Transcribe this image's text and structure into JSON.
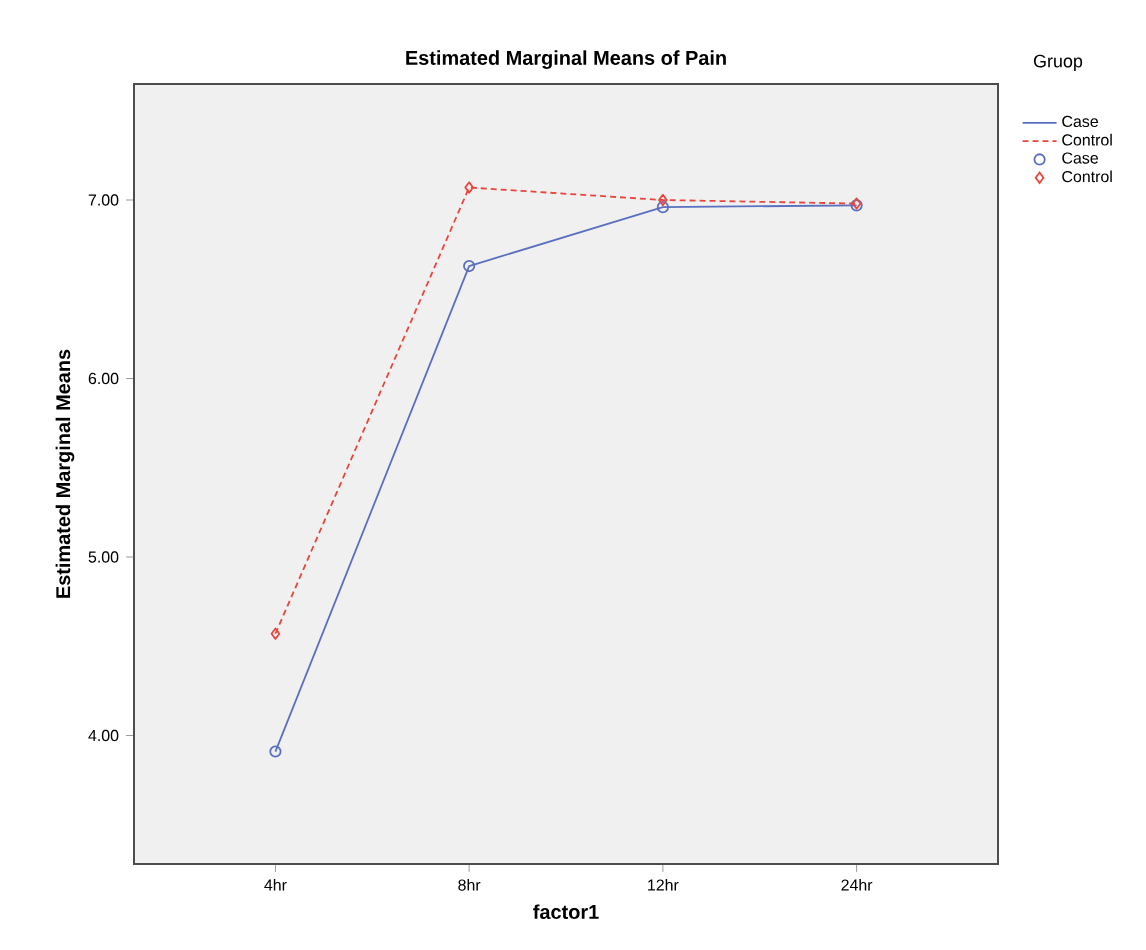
{
  "chart_data": {
    "type": "line",
    "title": "Estimated Marginal Means of Pain",
    "xlabel": "factor1",
    "ylabel": "Estimated Marginal Means",
    "legend_title": "Gruop",
    "categories": [
      "4hr",
      "8hr",
      "12hr",
      "24hr"
    ],
    "series": [
      {
        "name": "Case",
        "color": "#5a6fbf",
        "values": [
          3.91,
          6.63,
          6.96,
          6.97
        ],
        "marker": "circle",
        "line_style": "solid"
      },
      {
        "name": "Control",
        "color": "#e8453c",
        "values": [
          4.57,
          7.07,
          7.0,
          6.98
        ],
        "marker": "diamond",
        "line_style": "dashed"
      }
    ],
    "ylim": [
      3.28,
      7.65
    ],
    "yticks": [
      {
        "value": 4,
        "label": "4.00"
      },
      {
        "value": 5,
        "label": "5.00"
      },
      {
        "value": 6,
        "label": "6.00"
      },
      {
        "value": 7,
        "label": "7.00"
      }
    ],
    "grid": false,
    "legend": "right"
  }
}
